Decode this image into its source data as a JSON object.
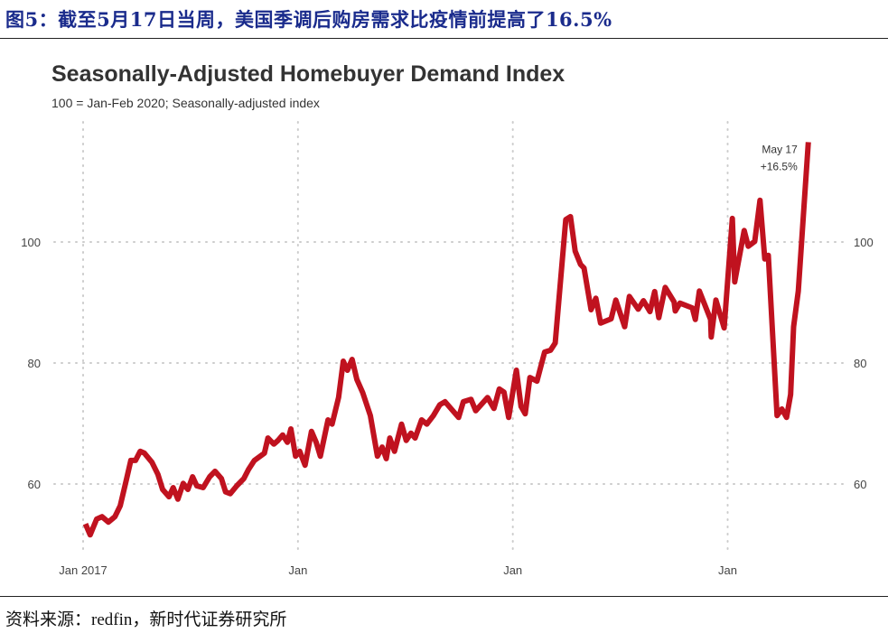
{
  "figure_title": "图5：截至5月17日当周，美国季调后购房需求比疫情前提高了16.5%",
  "source": "资料来源：redfin，新时代证券研究所",
  "chart_data": {
    "type": "line",
    "title": "Seasonally-Adjusted Homebuyer Demand Index",
    "subtitle": "100 = Jan-Feb 2020; Seasonally-adjusted index",
    "xlabel": "",
    "ylabel": "",
    "x_ticks": [
      {
        "date": "2017-01-01",
        "label": "Jan 2017"
      },
      {
        "date": "2018-01-01",
        "label": "Jan"
      },
      {
        "date": "2019-01-01",
        "label": "Jan"
      },
      {
        "date": "2020-01-01",
        "label": "Jan"
      }
    ],
    "y_ticks": [
      60,
      80,
      100
    ],
    "y_tick_labels": [
      "60",
      "80",
      "100"
    ],
    "y_axis_sides": "left and right",
    "xlim": [
      "2016-12-25",
      "2020-05-31"
    ],
    "ylim": [
      48,
      120
    ],
    "grid": "dotted, both axes",
    "line_color": "#c0121f",
    "annotation": {
      "date": "2020-05-17",
      "value": 116.5,
      "line1": "May 17",
      "line2": "+16.5%"
    },
    "series": [
      {
        "points": [
          [
            "2017-01-05",
            53.4
          ],
          [
            "2017-01-13",
            51.6
          ],
          [
            "2017-01-24",
            54.2
          ],
          [
            "2017-02-02",
            54.6
          ],
          [
            "2017-02-13",
            53.7
          ],
          [
            "2017-02-24",
            54.6
          ],
          [
            "2017-03-05",
            56.4
          ],
          [
            "2017-03-16",
            60.9
          ],
          [
            "2017-03-23",
            63.9
          ],
          [
            "2017-03-31",
            63.9
          ],
          [
            "2017-04-08",
            65.4
          ],
          [
            "2017-04-15",
            65.1
          ],
          [
            "2017-04-28",
            63.6
          ],
          [
            "2017-05-08",
            61.6
          ],
          [
            "2017-05-16",
            59.1
          ],
          [
            "2017-05-27",
            57.9
          ],
          [
            "2017-06-03",
            59.4
          ],
          [
            "2017-06-11",
            57.5
          ],
          [
            "2017-06-20",
            60.1
          ],
          [
            "2017-06-28",
            59.1
          ],
          [
            "2017-07-06",
            61.2
          ],
          [
            "2017-07-13",
            59.7
          ],
          [
            "2017-07-24",
            59.4
          ],
          [
            "2017-08-04",
            61.2
          ],
          [
            "2017-08-13",
            62.1
          ],
          [
            "2017-08-24",
            60.9
          ],
          [
            "2017-08-31",
            58.7
          ],
          [
            "2017-09-08",
            58.4
          ],
          [
            "2017-09-19",
            59.7
          ],
          [
            "2017-10-01",
            60.9
          ],
          [
            "2017-10-09",
            62.4
          ],
          [
            "2017-10-19",
            63.9
          ],
          [
            "2017-10-29",
            64.6
          ],
          [
            "2017-11-05",
            65.1
          ],
          [
            "2017-11-11",
            67.6
          ],
          [
            "2017-11-21",
            66.6
          ],
          [
            "2017-11-28",
            67.2
          ],
          [
            "2017-12-06",
            68.1
          ],
          [
            "2017-12-14",
            66.9
          ],
          [
            "2017-12-20",
            69.1
          ],
          [
            "2017-12-28",
            64.6
          ],
          [
            "2018-01-04",
            65.4
          ],
          [
            "2018-01-13",
            63.1
          ],
          [
            "2018-01-24",
            68.7
          ],
          [
            "2018-02-01",
            66.9
          ],
          [
            "2018-02-08",
            64.6
          ],
          [
            "2018-02-21",
            70.6
          ],
          [
            "2018-02-28",
            69.9
          ],
          [
            "2018-03-11",
            74.3
          ],
          [
            "2018-03-19",
            80.3
          ],
          [
            "2018-03-26",
            78.8
          ],
          [
            "2018-04-03",
            80.6
          ],
          [
            "2018-04-11",
            77.3
          ],
          [
            "2018-04-21",
            75.1
          ],
          [
            "2018-05-04",
            71.3
          ],
          [
            "2018-05-16",
            64.6
          ],
          [
            "2018-05-24",
            66.1
          ],
          [
            "2018-05-31",
            64.2
          ],
          [
            "2018-06-06",
            67.6
          ],
          [
            "2018-06-14",
            65.4
          ],
          [
            "2018-06-26",
            69.9
          ],
          [
            "2018-07-04",
            67.2
          ],
          [
            "2018-07-12",
            68.4
          ],
          [
            "2018-07-19",
            67.6
          ],
          [
            "2018-07-30",
            70.6
          ],
          [
            "2018-08-08",
            69.9
          ],
          [
            "2018-08-19",
            71.3
          ],
          [
            "2018-08-30",
            73.1
          ],
          [
            "2018-09-08",
            73.6
          ],
          [
            "2018-10-01",
            71.0
          ],
          [
            "2018-10-09",
            73.6
          ],
          [
            "2018-10-22",
            74.0
          ],
          [
            "2018-10-30",
            72.1
          ],
          [
            "2018-11-19",
            74.3
          ],
          [
            "2018-11-30",
            72.5
          ],
          [
            "2018-12-09",
            75.7
          ],
          [
            "2018-12-17",
            75.2
          ],
          [
            "2018-12-25",
            71.0
          ],
          [
            "2019-01-07",
            78.8
          ],
          [
            "2019-01-15",
            72.8
          ],
          [
            "2019-01-22",
            71.6
          ],
          [
            "2019-01-30",
            77.6
          ],
          [
            "2019-02-11",
            77.0
          ],
          [
            "2019-02-24",
            81.8
          ],
          [
            "2019-03-06",
            82.1
          ],
          [
            "2019-03-14",
            83.3
          ],
          [
            "2019-04-01",
            103.7
          ],
          [
            "2019-04-09",
            104.2
          ],
          [
            "2019-04-17",
            98.5
          ],
          [
            "2019-04-26",
            96.3
          ],
          [
            "2019-05-02",
            95.7
          ],
          [
            "2019-05-14",
            88.8
          ],
          [
            "2019-05-22",
            90.7
          ],
          [
            "2019-05-30",
            86.6
          ],
          [
            "2019-06-17",
            87.3
          ],
          [
            "2019-06-25",
            90.4
          ],
          [
            "2019-07-10",
            86.0
          ],
          [
            "2019-07-18",
            91.0
          ],
          [
            "2019-08-02",
            88.9
          ],
          [
            "2019-08-11",
            90.3
          ],
          [
            "2019-08-22",
            88.5
          ],
          [
            "2019-08-30",
            91.8
          ],
          [
            "2019-09-06",
            87.5
          ],
          [
            "2019-09-17",
            92.5
          ],
          [
            "2019-10-02",
            90.1
          ],
          [
            "2019-10-04",
            88.6
          ],
          [
            "2019-10-12",
            89.9
          ],
          [
            "2019-11-02",
            89.1
          ],
          [
            "2019-11-07",
            87.2
          ],
          [
            "2019-11-14",
            91.9
          ],
          [
            "2019-12-03",
            87.2
          ],
          [
            "2019-12-04",
            84.3
          ],
          [
            "2019-12-12",
            90.4
          ],
          [
            "2019-12-26",
            85.8
          ],
          [
            "2020-01-09",
            103.9
          ],
          [
            "2020-01-13",
            93.4
          ],
          [
            "2020-01-29",
            101.9
          ],
          [
            "2020-02-05",
            99.3
          ],
          [
            "2020-02-16",
            100.1
          ],
          [
            "2020-02-25",
            106.9
          ],
          [
            "2020-03-04",
            97.2
          ],
          [
            "2020-03-10",
            97.8
          ],
          [
            "2020-03-25",
            71.3
          ],
          [
            "2020-04-02",
            72.4
          ],
          [
            "2020-04-10",
            71.0
          ],
          [
            "2020-04-17",
            74.8
          ],
          [
            "2020-04-22",
            86.0
          ],
          [
            "2020-04-30",
            91.9
          ],
          [
            "2020-05-17",
            116.5
          ]
        ]
      }
    ]
  }
}
